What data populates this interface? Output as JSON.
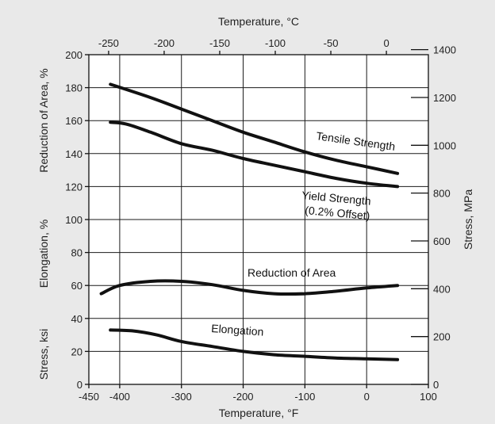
{
  "chart_data": {
    "type": "line",
    "axes": {
      "bottom": {
        "label": "Temperature, °F",
        "min": -450,
        "max": 100,
        "ticks": [
          -450,
          -400,
          -300,
          -200,
          -100,
          0,
          100
        ],
        "tick_labels": [
          "-450",
          "-400",
          "-300",
          "-200",
          "-100",
          "0",
          "100"
        ]
      },
      "top": {
        "label": "Temperature, °C",
        "ticks": [
          -250,
          -200,
          -150,
          -100,
          -50,
          0
        ],
        "tick_labels": [
          "-250",
          "-200",
          "-150",
          "-100",
          "-50",
          "0"
        ]
      },
      "left": {
        "labels": [
          "Reduction of Area, %",
          "Elongation, %",
          "Stress, ksi"
        ],
        "min": 0,
        "max": 200,
        "ticks": [
          0,
          20,
          40,
          60,
          80,
          100,
          120,
          140,
          160,
          180,
          200
        ],
        "tick_labels": [
          "0",
          "20",
          "40",
          "60",
          "80",
          "100",
          "120",
          "140",
          "160",
          "180",
          "200"
        ]
      },
      "right": {
        "label": "Stress, MPa",
        "ticks": [
          0,
          200,
          400,
          600,
          800,
          1000,
          1200,
          1400
        ],
        "tick_labels": [
          "0",
          "200",
          "400",
          "600",
          "800",
          "1000",
          "1200",
          "1400"
        ]
      }
    },
    "grid": true,
    "series": [
      {
        "name": "Tensile Strength",
        "label": "Tensile Strength",
        "x": [
          -415,
          -350,
          -300,
          -250,
          -200,
          -150,
          -100,
          -50,
          0,
          50
        ],
        "y": [
          182,
          174,
          167,
          160,
          153,
          147,
          141,
          136,
          132,
          128
        ]
      },
      {
        "name": "Yield Strength (0.2% Offset)",
        "label_lines": [
          "Yield Strength",
          "(0.2% Offset)"
        ],
        "x": [
          -415,
          -390,
          -350,
          -300,
          -250,
          -200,
          -150,
          -100,
          -50,
          0,
          50
        ],
        "y": [
          159,
          158,
          153,
          146,
          142,
          137,
          133,
          129,
          125,
          122,
          120
        ]
      },
      {
        "name": "Reduction of Area",
        "label": "Reduction of Area",
        "x": [
          -430,
          -400,
          -350,
          -300,
          -250,
          -200,
          -150,
          -100,
          -50,
          0,
          50
        ],
        "y": [
          55,
          60,
          62.5,
          62.5,
          60.5,
          57,
          55,
          55,
          56.5,
          58.5,
          60
        ]
      },
      {
        "name": "Elongation",
        "label": "Elongation",
        "x": [
          -415,
          -380,
          -340,
          -300,
          -250,
          -200,
          -150,
          -100,
          -50,
          0,
          50
        ],
        "y": [
          33,
          32.5,
          30,
          26,
          23,
          20,
          18,
          17,
          16,
          15.5,
          15
        ]
      }
    ]
  }
}
